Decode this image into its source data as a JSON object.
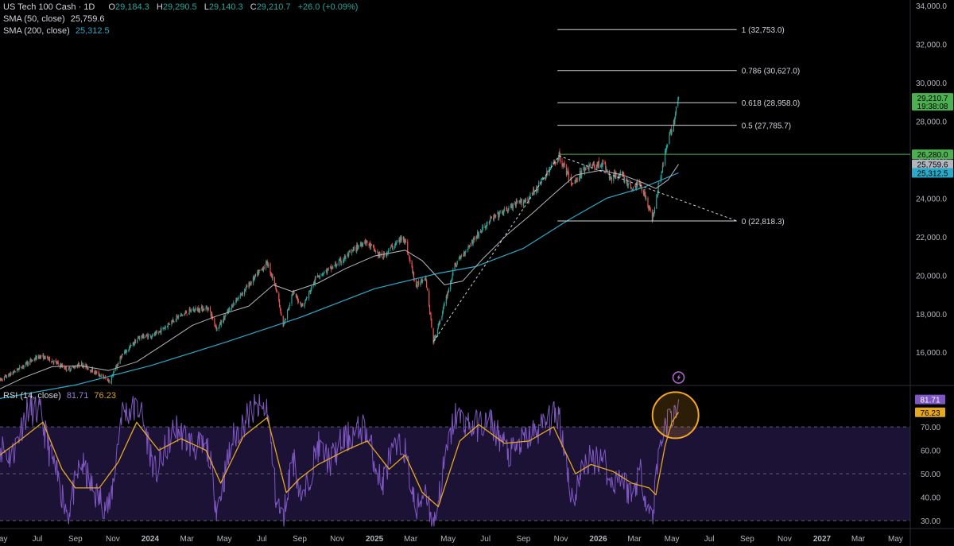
{
  "header": {
    "symbol": "US Tech 100 Cash · 1D",
    "ohlc": [
      {
        "key": "O",
        "value": "29,184.3"
      },
      {
        "key": "H",
        "value": "29,290.5"
      },
      {
        "key": "L",
        "value": "29,140.3"
      },
      {
        "key": "C",
        "value": "29,210.7"
      }
    ],
    "change": "+26.0 (+0.09%)",
    "sma50_label": "SMA (50, close)",
    "sma50_value": "25,759.6",
    "sma200_label": "SMA (200, close)",
    "sma200_value": "25,312.5"
  },
  "rsi_legend": {
    "label": "RSI (14, close)",
    "rsi_value": "81.71",
    "ma_value": "76.23"
  },
  "colors": {
    "up": "#26a69a",
    "down": "#ef5350",
    "sma50": "#b2b5be",
    "sma200": "#2aa9c9",
    "rsi": "#7e57c2",
    "rsi_ma": "#e5a81f",
    "rsi_band": "#1c1236",
    "highlight_circle": "#f5a623",
    "current_price_tag": "#4caf50",
    "level_line": "#4caf50"
  },
  "icons": {
    "alert": "lightning-bolt-icon"
  },
  "chart_data": [
    {
      "type": "candlestick",
      "title": "US Tech 100 Cash · 1D",
      "x_axis": {
        "type": "date",
        "range": [
          "2023-05-01",
          "2027-05-25"
        ],
        "tick_labels": [
          {
            "date": "2023-05-01",
            "label": "May"
          },
          {
            "date": "2023-07-01",
            "label": "Jul"
          },
          {
            "date": "2023-09-01",
            "label": "Sep"
          },
          {
            "date": "2023-11-01",
            "label": "Nov"
          },
          {
            "date": "2024-01-01",
            "label": "2024"
          },
          {
            "date": "2024-03-01",
            "label": "Mar"
          },
          {
            "date": "2024-05-01",
            "label": "May"
          },
          {
            "date": "2024-07-01",
            "label": "Jul"
          },
          {
            "date": "2024-09-01",
            "label": "Sep"
          },
          {
            "date": "2024-11-01",
            "label": "Nov"
          },
          {
            "date": "2025-01-01",
            "label": "2025"
          },
          {
            "date": "2025-03-01",
            "label": "Mar"
          },
          {
            "date": "2025-05-01",
            "label": "May"
          },
          {
            "date": "2025-07-01",
            "label": "Jul"
          },
          {
            "date": "2025-09-01",
            "label": "Sep"
          },
          {
            "date": "2025-11-01",
            "label": "Nov"
          },
          {
            "date": "2026-01-01",
            "label": "2026"
          },
          {
            "date": "2026-03-01",
            "label": "Mar"
          },
          {
            "date": "2026-05-01",
            "label": "May"
          },
          {
            "date": "2026-07-01",
            "label": "Jul"
          },
          {
            "date": "2026-09-01",
            "label": "Sep"
          },
          {
            "date": "2026-11-01",
            "label": "Nov"
          },
          {
            "date": "2027-01-01",
            "label": "2027"
          },
          {
            "date": "2027-03-01",
            "label": "Mar"
          },
          {
            "date": "2027-05-01",
            "label": "May"
          }
        ]
      },
      "y_axis": {
        "range": [
          14400,
          34000
        ],
        "tick_values": [
          16000,
          18000,
          20000,
          22000,
          24000,
          26000,
          28000,
          30000,
          32000,
          34000
        ],
        "tick_labels": [
          "16,000.0",
          "18,000.0",
          "20,000.0",
          "22,000.0",
          "24,000.0",
          "26,000.0",
          "28,000.0",
          "30,000.0",
          "32,000.0",
          "34,000.0"
        ]
      },
      "price_path": [
        [
          "2023-05-01",
          14550
        ],
        [
          "2023-05-20",
          14900
        ],
        [
          "2023-06-15",
          15450
        ],
        [
          "2023-07-05",
          15800
        ],
        [
          "2023-07-20",
          15650
        ],
        [
          "2023-08-20",
          15100
        ],
        [
          "2023-09-10",
          15400
        ],
        [
          "2023-10-01",
          15000
        ],
        [
          "2023-10-27",
          14500
        ],
        [
          "2023-11-15",
          15800
        ],
        [
          "2023-12-15",
          16800
        ],
        [
          "2024-01-10",
          16900
        ],
        [
          "2024-02-10",
          17750
        ],
        [
          "2024-03-10",
          18200
        ],
        [
          "2024-04-05",
          18300
        ],
        [
          "2024-04-19",
          17200
        ],
        [
          "2024-05-15",
          18500
        ],
        [
          "2024-06-15",
          19700
        ],
        [
          "2024-07-10",
          20650
        ],
        [
          "2024-07-25",
          19300
        ],
        [
          "2024-08-05",
          17300
        ],
        [
          "2024-08-20",
          19100
        ],
        [
          "2024-09-06",
          18400
        ],
        [
          "2024-09-30",
          20000
        ],
        [
          "2024-10-20",
          20300
        ],
        [
          "2024-11-10",
          20800
        ],
        [
          "2024-12-16",
          21800
        ],
        [
          "2025-01-13",
          20900
        ],
        [
          "2025-01-27",
          21400
        ],
        [
          "2025-02-18",
          22000
        ],
        [
          "2025-03-10",
          19400
        ],
        [
          "2025-03-25",
          20000
        ],
        [
          "2025-04-07",
          16550
        ],
        [
          "2025-04-22",
          18100
        ],
        [
          "2025-05-12",
          20500
        ],
        [
          "2025-06-10",
          21800
        ],
        [
          "2025-07-10",
          22900
        ],
        [
          "2025-08-10",
          23500
        ],
        [
          "2025-09-10",
          24000
        ],
        [
          "2025-10-10",
          25300
        ],
        [
          "2025-10-29",
          26200
        ],
        [
          "2025-11-20",
          24700
        ],
        [
          "2025-12-10",
          25600
        ],
        [
          "2026-01-10",
          25800
        ],
        [
          "2026-01-20",
          25000
        ],
        [
          "2026-02-05",
          25300
        ],
        [
          "2026-02-25",
          24500
        ],
        [
          "2026-03-10",
          24800
        ],
        [
          "2026-03-20",
          24000
        ],
        [
          "2026-03-30",
          22900
        ],
        [
          "2026-04-08",
          24500
        ],
        [
          "2026-04-18",
          26000
        ],
        [
          "2026-04-28",
          27300
        ],
        [
          "2026-05-05",
          28100
        ],
        [
          "2026-05-12",
          29210
        ]
      ],
      "sma50_path": [
        [
          "2023-05-01",
          14100
        ],
        [
          "2023-06-10",
          14700
        ],
        [
          "2023-07-25",
          15250
        ],
        [
          "2023-09-10",
          15300
        ],
        [
          "2023-10-25",
          15050
        ],
        [
          "2023-12-10",
          15500
        ],
        [
          "2024-01-20",
          16350
        ],
        [
          "2024-03-10",
          17400
        ],
        [
          "2024-04-20",
          17900
        ],
        [
          "2024-06-10",
          18400
        ],
        [
          "2024-07-20",
          19500
        ],
        [
          "2024-08-20",
          19150
        ],
        [
          "2024-10-01",
          19600
        ],
        [
          "2024-11-15",
          20350
        ],
        [
          "2025-01-01",
          21000
        ],
        [
          "2025-02-20",
          21300
        ],
        [
          "2025-03-20",
          20750
        ],
        [
          "2025-04-25",
          19500
        ],
        [
          "2025-05-25",
          19700
        ],
        [
          "2025-06-25",
          20800
        ],
        [
          "2025-08-05",
          22100
        ],
        [
          "2025-09-15",
          23200
        ],
        [
          "2025-10-20",
          24200
        ],
        [
          "2025-11-25",
          25200
        ],
        [
          "2026-01-05",
          25450
        ],
        [
          "2026-02-10",
          25200
        ],
        [
          "2026-03-15",
          24800
        ],
        [
          "2026-04-05",
          24500
        ],
        [
          "2026-04-25",
          24950
        ],
        [
          "2026-05-12",
          25759.6
        ]
      ],
      "sma200_path": [
        [
          "2023-05-01",
          13600
        ],
        [
          "2023-09-01",
          14300
        ],
        [
          "2024-01-01",
          15300
        ],
        [
          "2024-05-01",
          16500
        ],
        [
          "2024-09-01",
          17800
        ],
        [
          "2025-01-01",
          19300
        ],
        [
          "2025-04-15",
          20100
        ],
        [
          "2025-06-15",
          20450
        ],
        [
          "2025-09-01",
          21400
        ],
        [
          "2025-11-15",
          22900
        ],
        [
          "2026-01-15",
          24000
        ],
        [
          "2026-03-15",
          24550
        ],
        [
          "2026-05-12",
          25312.5
        ]
      ],
      "fibonacci": {
        "anchor_low": [
          "2025-04-07",
          16550
        ],
        "anchor_high": [
          "2025-10-29",
          26200
        ],
        "retrace_low": [
          "2026-03-30",
          22818.3
        ],
        "levels": [
          {
            "label": "1 (32,753.0)",
            "value": 32753.0
          },
          {
            "label": "0.786 (30,627.0)",
            "value": 30627.0
          },
          {
            "label": "0.618 (28,958.0)",
            "value": 28958.0
          },
          {
            "label": "0.5 (27,785.7)",
            "value": 27785.7
          },
          {
            "label": "0 (22,818.3)",
            "value": 22818.3
          }
        ]
      },
      "horizontal_level": 26280.0,
      "price_tags": [
        {
          "label": "29,210.7",
          "sub": "19:38:08",
          "value": 29210.7,
          "role": "last"
        },
        {
          "label": "26,280.0",
          "value": 26280.0,
          "role": "level"
        },
        {
          "label": "25,759.6",
          "value": 25759.6,
          "role": "sma50"
        },
        {
          "label": "25,312.5",
          "value": 25312.5,
          "role": "sma200"
        }
      ]
    },
    {
      "type": "line",
      "title": "RSI (14, close)",
      "y_axis": {
        "range": [
          27,
          87
        ],
        "tick_values": [
          30,
          40,
          50,
          60,
          70
        ],
        "tick_labels": [
          "30.00",
          "40.00",
          "50.00",
          "60.00",
          "70.00"
        ]
      },
      "bands": {
        "upper": 70,
        "middle": 50,
        "lower": 30
      },
      "rsi_path": [
        [
          "2023-05-01",
          62
        ],
        [
          "2023-05-20",
          57
        ],
        [
          "2023-06-15",
          78
        ],
        [
          "2023-07-05",
          76
        ],
        [
          "2023-07-20",
          60
        ],
        [
          "2023-08-20",
          33
        ],
        [
          "2023-09-10",
          55
        ],
        [
          "2023-10-01",
          42
        ],
        [
          "2023-10-27",
          35
        ],
        [
          "2023-11-15",
          76
        ],
        [
          "2023-12-15",
          78
        ],
        [
          "2024-01-10",
          50
        ],
        [
          "2024-02-10",
          70
        ],
        [
          "2024-03-10",
          62
        ],
        [
          "2024-04-05",
          60
        ],
        [
          "2024-04-19",
          35
        ],
        [
          "2024-05-15",
          65
        ],
        [
          "2024-06-15",
          77
        ],
        [
          "2024-07-10",
          78
        ],
        [
          "2024-07-25",
          38
        ],
        [
          "2024-08-05",
          30
        ],
        [
          "2024-08-20",
          58
        ],
        [
          "2024-09-06",
          38
        ],
        [
          "2024-09-30",
          62
        ],
        [
          "2024-10-20",
          55
        ],
        [
          "2024-11-10",
          64
        ],
        [
          "2024-12-16",
          70
        ],
        [
          "2025-01-13",
          45
        ],
        [
          "2025-01-27",
          58
        ],
        [
          "2025-02-18",
          62
        ],
        [
          "2025-03-10",
          33
        ],
        [
          "2025-03-25",
          45
        ],
        [
          "2025-04-07",
          27
        ],
        [
          "2025-04-22",
          50
        ],
        [
          "2025-05-12",
          75
        ],
        [
          "2025-06-10",
          70
        ],
        [
          "2025-07-10",
          72
        ],
        [
          "2025-08-10",
          58
        ],
        [
          "2025-09-10",
          66
        ],
        [
          "2025-10-10",
          72
        ],
        [
          "2025-10-29",
          76
        ],
        [
          "2025-11-20",
          38
        ],
        [
          "2025-12-10",
          55
        ],
        [
          "2026-01-10",
          58
        ],
        [
          "2026-01-20",
          45
        ],
        [
          "2026-02-05",
          50
        ],
        [
          "2026-02-25",
          40
        ],
        [
          "2026-03-10",
          52
        ],
        [
          "2026-03-20",
          40
        ],
        [
          "2026-03-30",
          30
        ],
        [
          "2026-04-08",
          56
        ],
        [
          "2026-04-18",
          70
        ],
        [
          "2026-04-28",
          74
        ],
        [
          "2026-05-05",
          76
        ],
        [
          "2026-05-12",
          81.71
        ]
      ],
      "rsi_ma_path": [
        [
          "2023-05-01",
          58
        ],
        [
          "2023-06-01",
          64
        ],
        [
          "2023-07-10",
          72
        ],
        [
          "2023-08-10",
          52
        ],
        [
          "2023-09-01",
          44
        ],
        [
          "2023-10-10",
          44
        ],
        [
          "2023-11-10",
          55
        ],
        [
          "2023-12-10",
          72
        ],
        [
          "2024-01-15",
          60
        ],
        [
          "2024-02-20",
          65
        ],
        [
          "2024-04-01",
          60
        ],
        [
          "2024-04-25",
          46
        ],
        [
          "2024-06-01",
          66
        ],
        [
          "2024-07-10",
          74
        ],
        [
          "2024-08-10",
          42
        ],
        [
          "2024-09-01",
          48
        ],
        [
          "2024-10-01",
          54
        ],
        [
          "2024-11-15",
          60
        ],
        [
          "2024-12-20",
          64
        ],
        [
          "2025-01-25",
          52
        ],
        [
          "2025-02-20",
          58
        ],
        [
          "2025-03-20",
          42
        ],
        [
          "2025-04-15",
          36
        ],
        [
          "2025-05-20",
          64
        ],
        [
          "2025-06-20",
          71
        ],
        [
          "2025-08-01",
          63
        ],
        [
          "2025-09-10",
          64
        ],
        [
          "2025-10-20",
          70
        ],
        [
          "2025-11-25",
          50
        ],
        [
          "2025-12-20",
          54
        ],
        [
          "2026-01-25",
          51
        ],
        [
          "2026-02-25",
          46
        ],
        [
          "2026-03-25",
          44
        ],
        [
          "2026-04-05",
          41
        ],
        [
          "2026-04-20",
          62
        ],
        [
          "2026-05-01",
          72
        ],
        [
          "2026-05-12",
          76.23
        ]
      ],
      "value_tags": [
        {
          "label": "81.71",
          "value": 81.71,
          "role": "rsi"
        },
        {
          "label": "76.23",
          "value": 76.23,
          "role": "ma"
        }
      ],
      "highlight": {
        "date": "2026-05-07",
        "value": 75
      }
    }
  ]
}
